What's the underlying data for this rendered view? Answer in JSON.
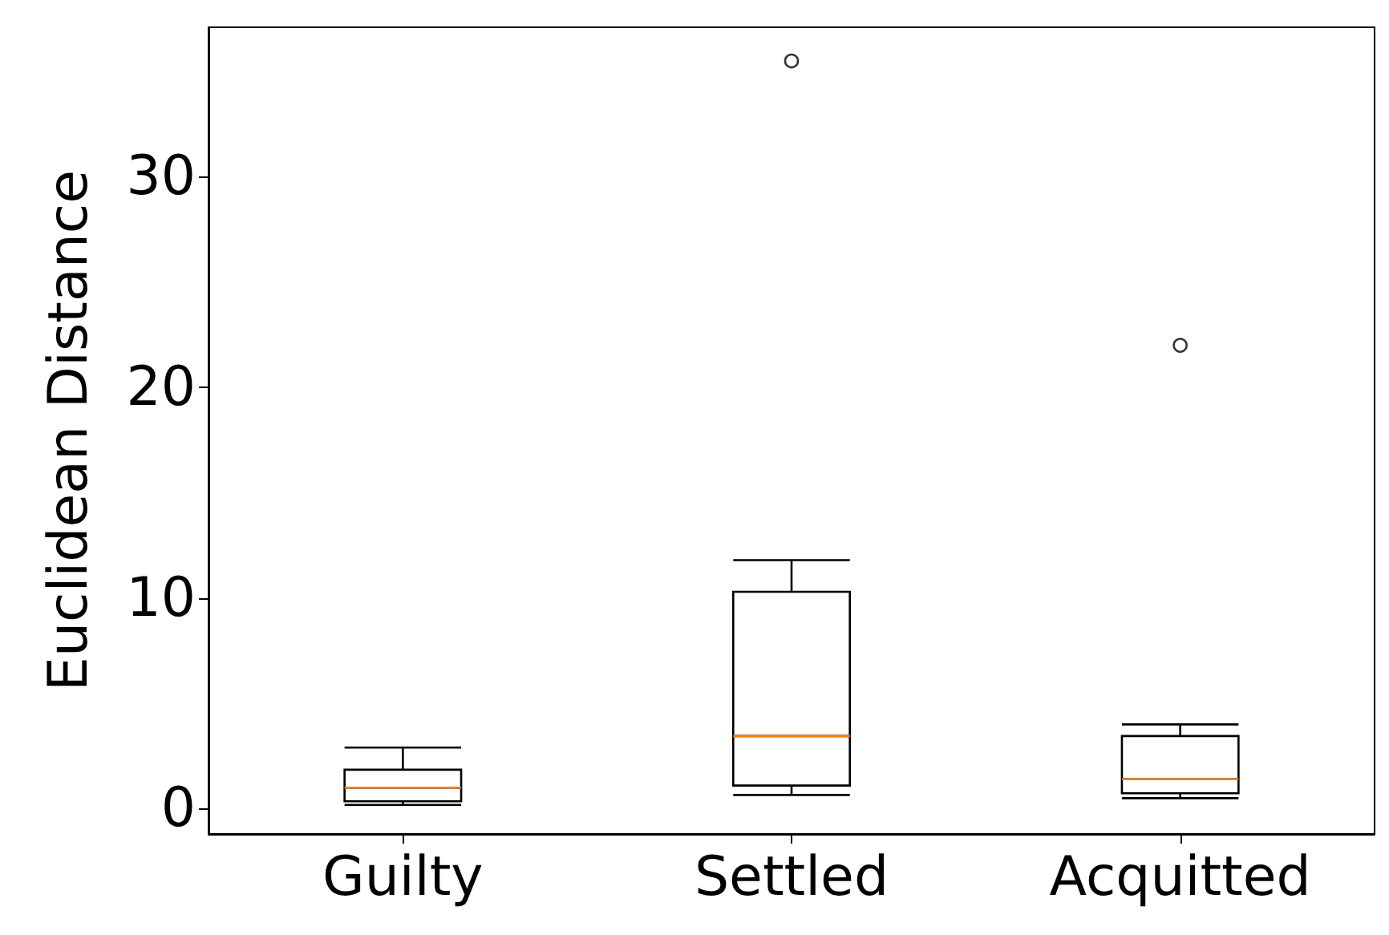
{
  "chart_data": {
    "type": "box",
    "ylabel": "Euclidean Distance",
    "categories": [
      "Guilty",
      "Settled",
      "Acquitted"
    ],
    "boxes": [
      {
        "low": 0.18,
        "q1": 0.35,
        "median": 1.0,
        "q3": 1.85,
        "high": 2.9
      },
      {
        "low": 0.65,
        "q1": 1.1,
        "median": 3.45,
        "q3": 10.3,
        "high": 11.8,
        "outliers": [
          35.5
        ]
      },
      {
        "low": 0.5,
        "q1": 0.73,
        "median": 1.4,
        "q3": 3.45,
        "high": 4.0,
        "outliers": [
          22.0
        ]
      }
    ],
    "ylim": [
      -1.2,
      37.1
    ],
    "yticks": [
      0,
      10,
      20,
      30
    ]
  }
}
